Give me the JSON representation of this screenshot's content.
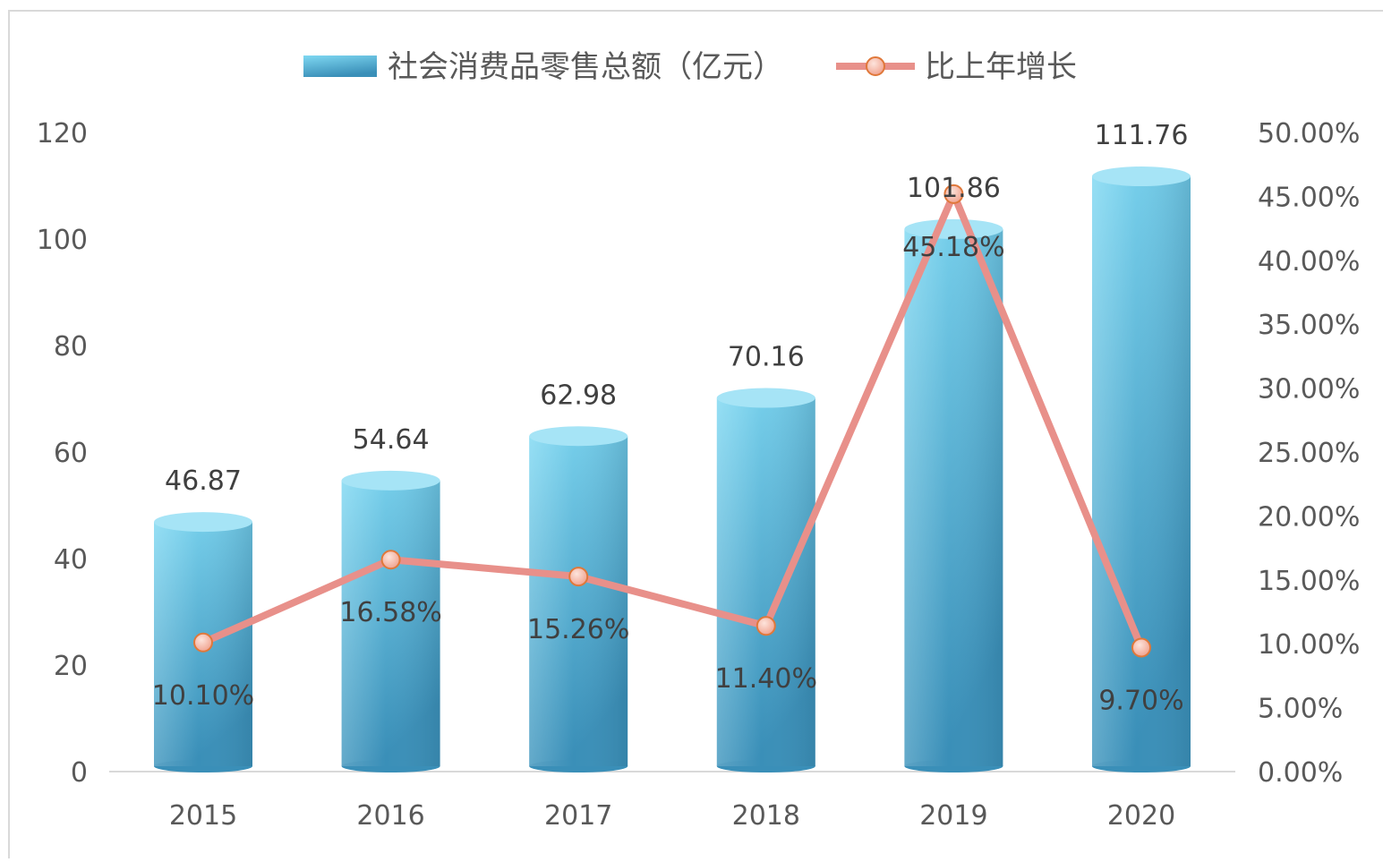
{
  "chart_data": {
    "type": "bar",
    "categories": [
      "2015",
      "2016",
      "2017",
      "2018",
      "2019",
      "2020"
    ],
    "series": [
      {
        "name": "社会消费品零售总额（亿元）",
        "type": "bar",
        "axis": "left",
        "values": [
          46.87,
          54.64,
          62.98,
          70.16,
          101.86,
          111.76
        ],
        "labels": [
          "46.87",
          "54.64",
          "62.98",
          "70.16",
          "101.86",
          "111.76"
        ]
      },
      {
        "name": "比上年增长",
        "type": "line",
        "axis": "right",
        "values": [
          10.1,
          16.58,
          15.26,
          11.4,
          45.18,
          9.7
        ],
        "labels": [
          "10.10%",
          "16.58%",
          "15.26%",
          "11.40%",
          "45.18%",
          "9.70%"
        ]
      }
    ],
    "y_left": {
      "range": [
        0,
        120
      ],
      "ticks": [
        "0",
        "20",
        "40",
        "60",
        "80",
        "100",
        "120"
      ]
    },
    "y_right": {
      "range": [
        0,
        50
      ],
      "ticks": [
        "0.00%",
        "5.00%",
        "10.00%",
        "15.00%",
        "20.00%",
        "25.00%",
        "30.00%",
        "35.00%",
        "40.00%",
        "45.00%",
        "50.00%"
      ]
    },
    "legend_position": "top",
    "grid": false,
    "colors": {
      "bar_light": "#7fd8f2",
      "bar_dark": "#3a8fb8",
      "line": "#e8908a",
      "marker_fill": "#f6b8a8",
      "marker_stroke": "#e0783a"
    }
  }
}
